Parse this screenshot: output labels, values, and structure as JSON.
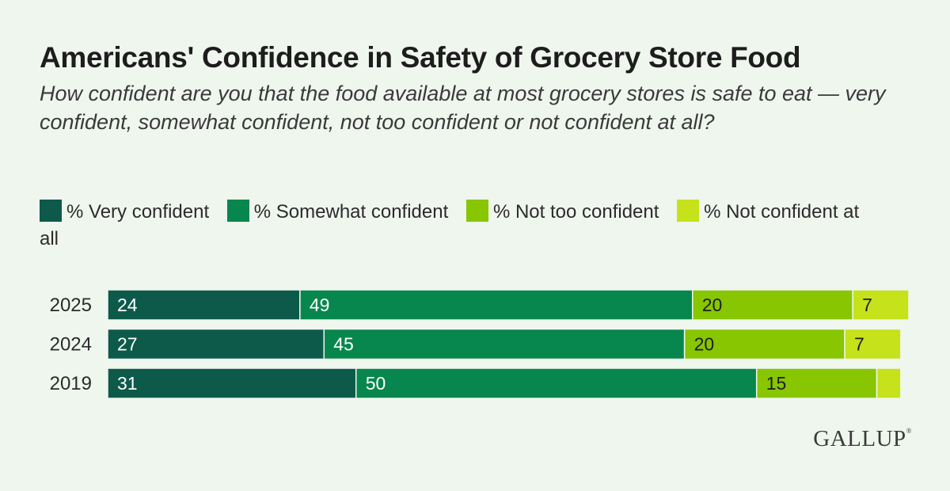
{
  "header": {
    "title": "Americans' Confidence in Safety of Grocery Store Food",
    "subtitle": "How confident are you that the food available at most grocery stores is safe to eat — very confident, somewhat confident, not too confident or not confident at all?"
  },
  "brand": {
    "name": "GALLUP",
    "mark": "®"
  },
  "chart_data": {
    "type": "bar",
    "orientation": "horizontal",
    "stacked": true,
    "categories": [
      "2025",
      "2024",
      "2019"
    ],
    "series": [
      {
        "name": "% Very confident",
        "color": "#0d5a4a",
        "values": [
          24,
          27,
          31
        ],
        "labels": [
          "24",
          "27",
          "31"
        ]
      },
      {
        "name": "% Somewhat confident",
        "color": "#07874d",
        "values": [
          49,
          45,
          50
        ],
        "labels": [
          "49",
          "45",
          "50"
        ]
      },
      {
        "name": "% Not too confident",
        "color": "#87c600",
        "values": [
          20,
          20,
          15
        ],
        "labels": [
          "20",
          "20",
          "15"
        ]
      },
      {
        "name": "% Not confident at all",
        "color": "#c5e21a",
        "values": [
          7,
          7,
          3
        ],
        "labels": [
          "7",
          "7",
          ""
        ]
      }
    ],
    "xlim": [
      0,
      100
    ],
    "grid": false,
    "legend_position": "top-left"
  }
}
